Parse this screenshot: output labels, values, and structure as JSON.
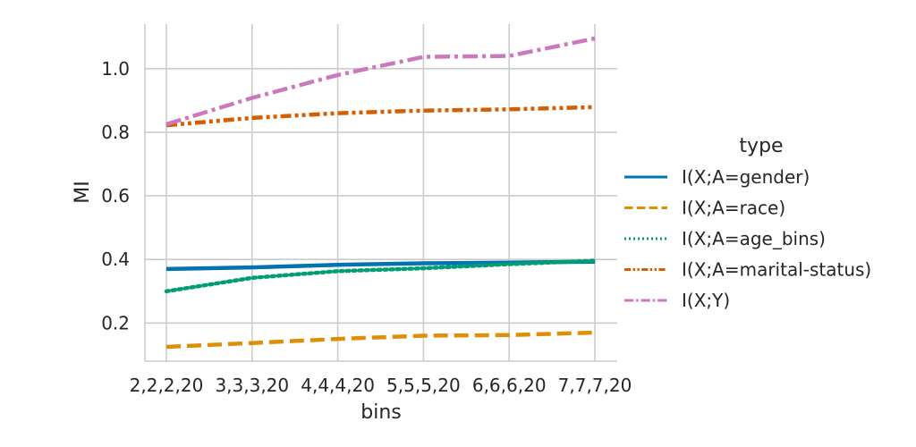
{
  "chart_data": {
    "type": "line",
    "xlabel": "bins",
    "ylabel": "MI",
    "categories": [
      "2,2,2,20",
      "3,3,3,20",
      "4,4,4,20",
      "5,5,5,20",
      "6,6,6,20",
      "7,7,7,20"
    ],
    "ylim": [
      0.08,
      1.14
    ],
    "yticks": [
      0.2,
      0.4,
      0.6,
      0.8,
      1.0
    ],
    "ytick_labels": [
      "0.2",
      "0.4",
      "0.6",
      "0.8",
      "1.0"
    ],
    "grid": true,
    "legend_title": "type",
    "legend_position": "right",
    "series": [
      {
        "name": "I(X;A=gender)",
        "values": [
          0.37,
          0.375,
          0.383,
          0.388,
          0.39,
          0.393
        ],
        "color": "#0173b2",
        "dash": "solid"
      },
      {
        "name": "I(X;A=race)",
        "values": [
          0.125,
          0.137,
          0.15,
          0.16,
          0.162,
          0.17
        ],
        "color": "#de8f05",
        "dash": "dashed"
      },
      {
        "name": "I(X;A=age_bins)",
        "values": [
          0.3,
          0.342,
          0.363,
          0.372,
          0.385,
          0.396
        ],
        "color": "#029e73",
        "dash": "dotted"
      },
      {
        "name": "I(X;A=marital-status)",
        "values": [
          0.822,
          0.845,
          0.86,
          0.868,
          0.872,
          0.879
        ],
        "color": "#d55e00",
        "dash": "dashdotdot"
      },
      {
        "name": "I(X;Y)",
        "values": [
          0.825,
          0.908,
          0.98,
          1.037,
          1.04,
          1.095
        ],
        "color": "#cc78bc",
        "dash": "dashdot"
      }
    ]
  }
}
